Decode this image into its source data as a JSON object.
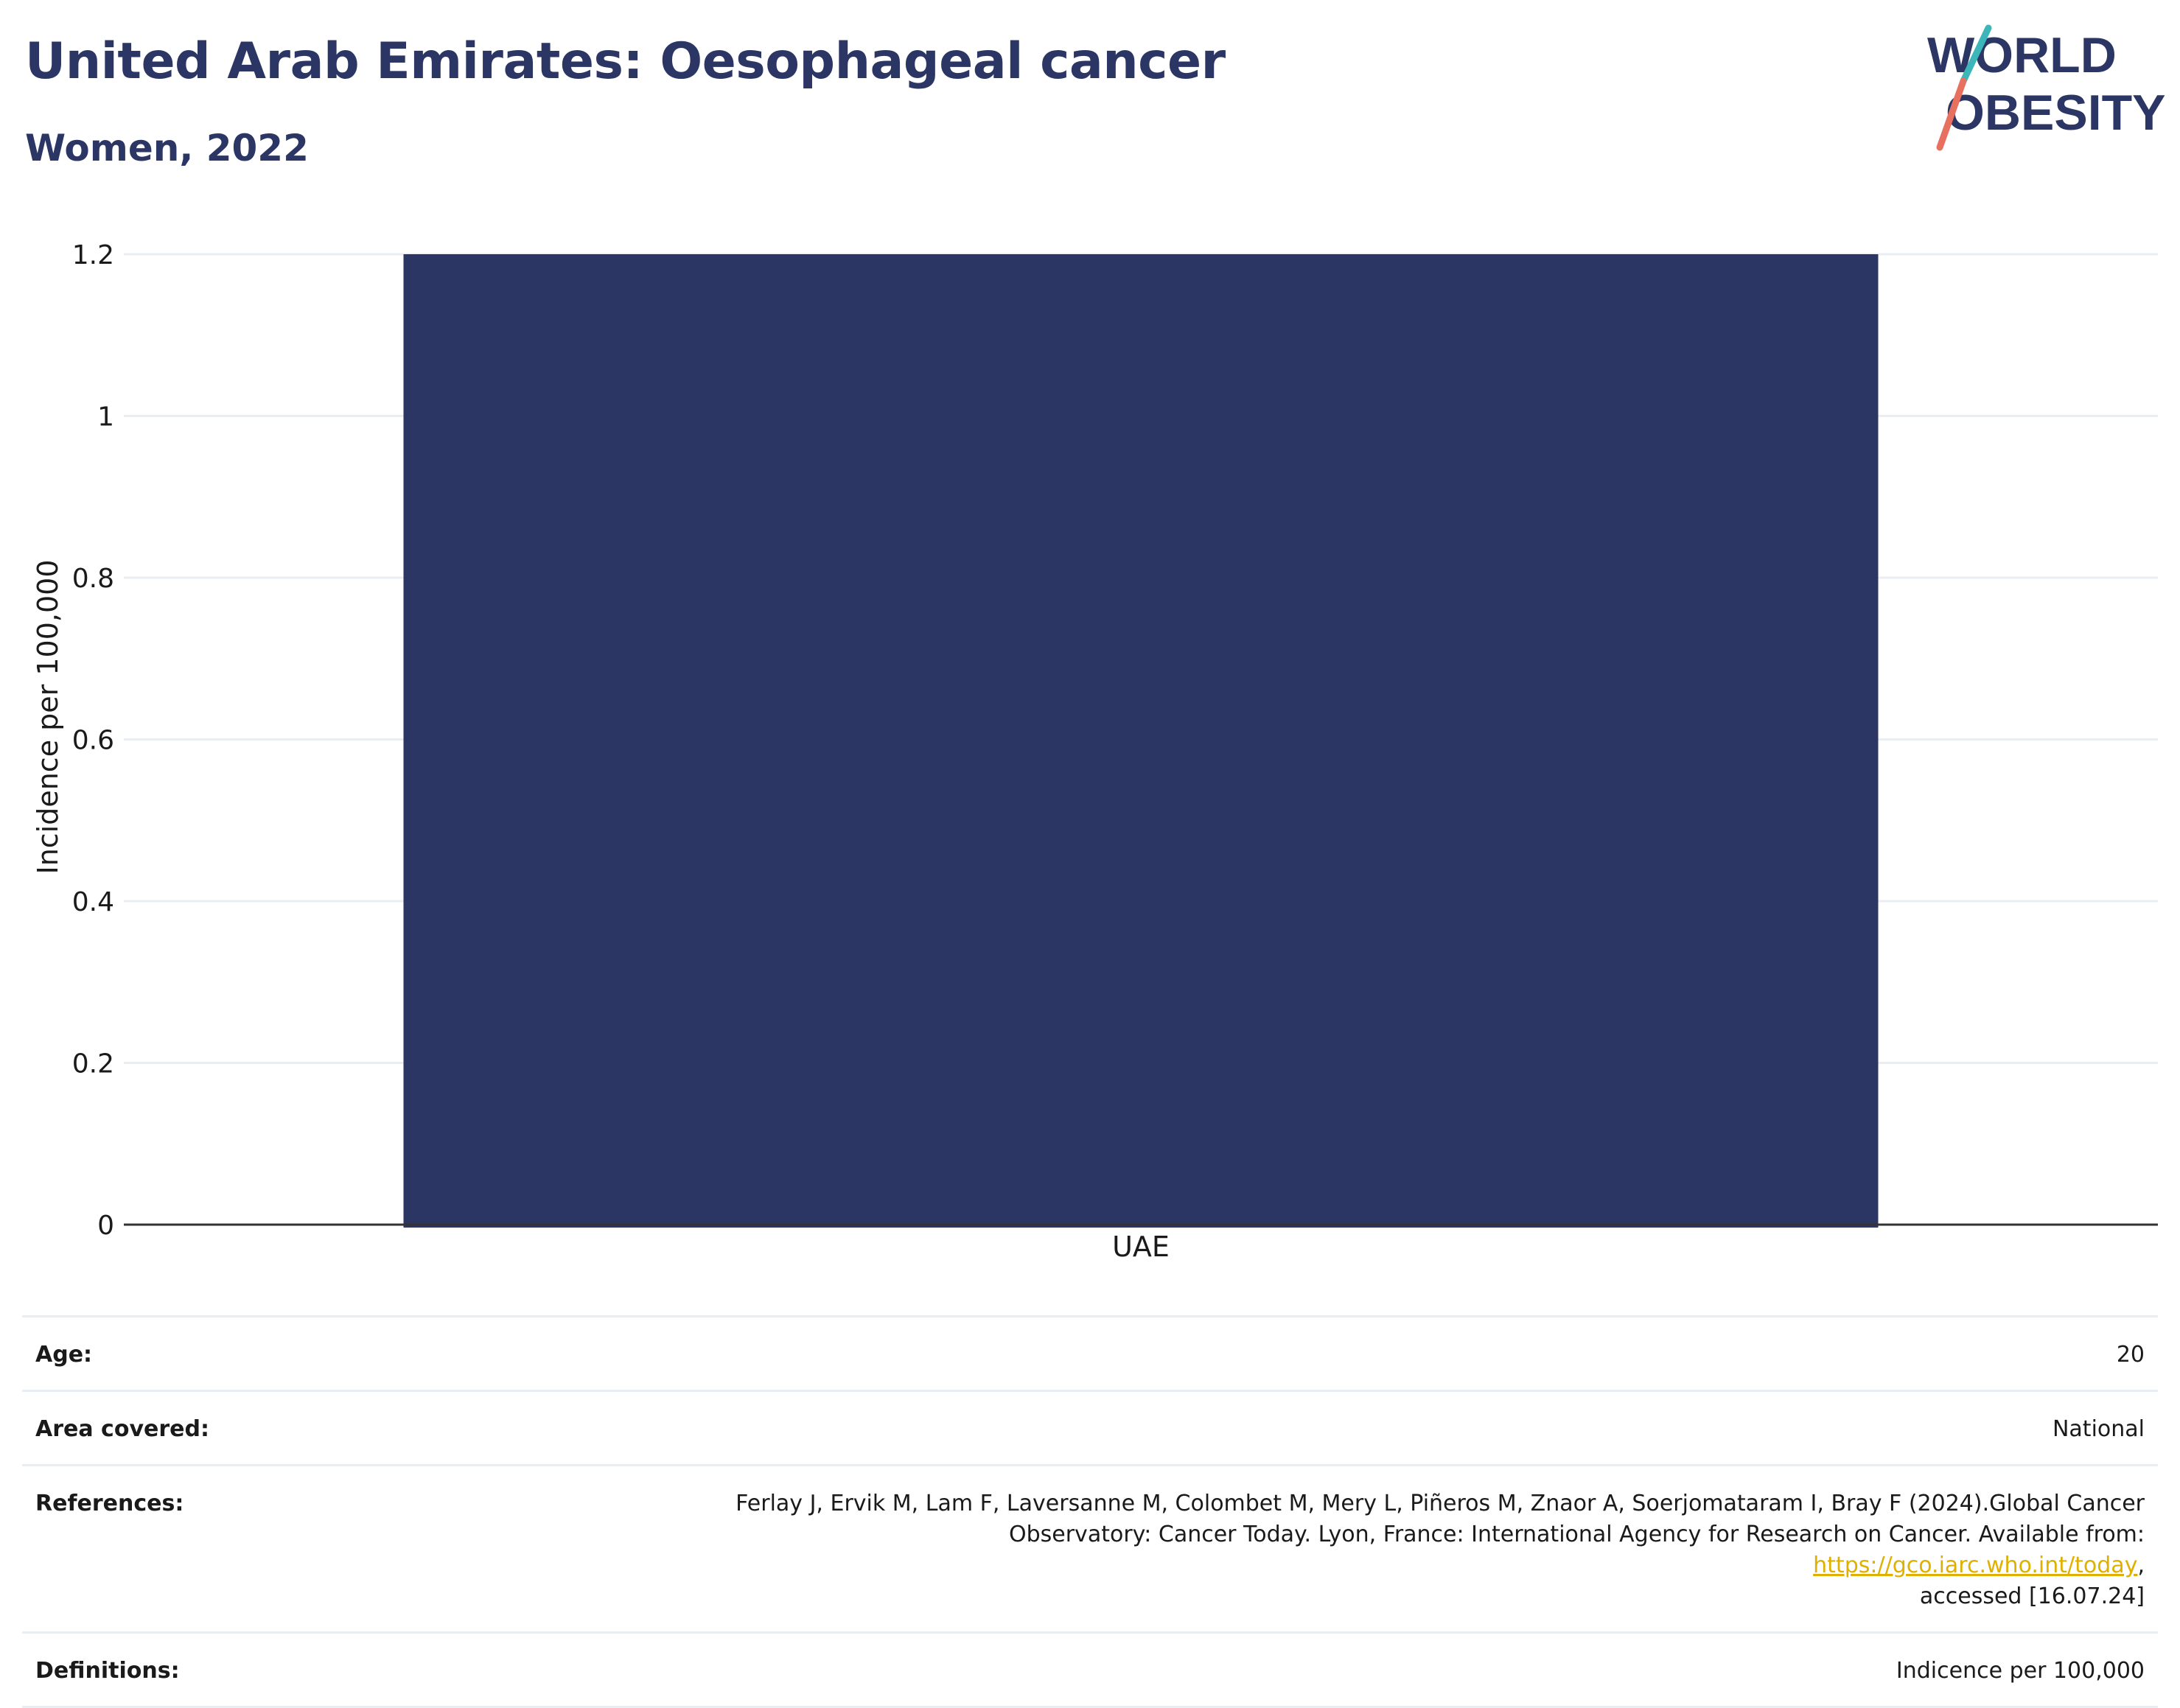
{
  "header": {
    "title": "United Arab Emirates: Oesophageal cancer",
    "subtitle": "Women, 2022"
  },
  "logo": {
    "line1": "WORLD",
    "line2": "OBESITY"
  },
  "colors": {
    "title": "#2b3664",
    "bar": "#2b3664",
    "link": "#e0b000",
    "logo_teal": "#3cb6b8",
    "logo_coral": "#e8705f"
  },
  "chart_data": {
    "type": "bar",
    "categories": [
      "UAE"
    ],
    "values": [
      1.2
    ],
    "ylabel": "Incidence per 100,000",
    "xlabel": "",
    "ylim": [
      0,
      1.2
    ],
    "yticks": [
      0,
      0.2,
      0.4,
      0.6,
      0.8,
      1,
      1.2
    ],
    "ytick_labels": [
      "0",
      "0.2",
      "0.4",
      "0.6",
      "0.8",
      "1",
      "1.2"
    ],
    "grid": true
  },
  "meta": {
    "age_label": "Age:",
    "age_value": "20",
    "area_label": "Area covered:",
    "area_value": "National",
    "references_label": "References:",
    "references_text_line1": "Ferlay J, Ervik M, Lam F, Laversanne M, Colombet M, Mery L, Piñeros M, Znaor A, Soerjomataram I, Bray F (2024).Global Cancer",
    "references_text_line2": "Observatory: Cancer Today. Lyon, France: International Agency for Research on Cancer. Available from: ",
    "references_link": "https://gco.iarc.who.int/today",
    "references_text_after_link": ",",
    "references_text_line3": "accessed [16.07.24]",
    "definitions_label": "Definitions:",
    "definitions_value": "Indicence per 100,000"
  }
}
